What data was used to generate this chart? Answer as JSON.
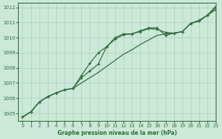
{
  "background_color": "#cce8d8",
  "plot_bg_color": "#cce8d8",
  "line_color": "#2d6b3c",
  "grid_color": "#aacfbc",
  "title": "Graphe pression niveau de la mer (hPa)",
  "ylim": [
    1004.5,
    1012.3
  ],
  "xlim": [
    -0.5,
    23
  ],
  "yticks": [
    1005,
    1006,
    1007,
    1008,
    1009,
    1010,
    1011,
    1012
  ],
  "xticks": [
    0,
    1,
    2,
    3,
    4,
    5,
    6,
    7,
    8,
    9,
    10,
    11,
    12,
    13,
    14,
    15,
    16,
    17,
    18,
    19,
    20,
    21,
    22,
    23
  ],
  "series1_x": [
    0,
    1,
    2,
    3,
    4,
    5,
    6,
    7,
    8,
    9,
    10,
    11,
    12,
    13,
    14,
    15,
    16,
    17,
    18,
    19,
    20,
    21,
    22,
    23
  ],
  "series1_y": [
    1004.75,
    1005.1,
    1005.75,
    1006.1,
    1006.35,
    1006.55,
    1006.65,
    1007.5,
    1008.3,
    1009.0,
    1009.4,
    1009.9,
    1010.2,
    1010.25,
    1010.4,
    1010.6,
    1010.55,
    1010.35,
    1010.3,
    1010.4,
    1010.95,
    1011.15,
    1011.5,
    1011.85
  ],
  "series2_x": [
    0,
    1,
    2,
    3,
    4,
    5,
    6,
    7,
    8,
    9,
    10,
    11,
    12,
    13,
    14,
    15,
    16,
    17,
    18,
    19,
    20,
    21,
    22,
    23
  ],
  "series2_y": [
    1004.75,
    1005.1,
    1005.75,
    1006.1,
    1006.35,
    1006.55,
    1006.65,
    1007.35,
    1007.8,
    1008.25,
    1009.4,
    1010.0,
    1010.25,
    1010.25,
    1010.45,
    1010.65,
    1010.65,
    1010.15,
    1010.3,
    1010.4,
    1010.95,
    1011.1,
    1011.5,
    1012.0
  ],
  "series3_x": [
    0,
    1,
    2,
    3,
    4,
    5,
    6,
    7,
    8,
    9,
    10,
    11,
    12,
    13,
    14,
    15,
    16,
    17,
    18,
    19,
    20,
    21,
    22,
    23
  ],
  "series3_y": [
    1004.75,
    1005.1,
    1005.75,
    1006.1,
    1006.35,
    1006.55,
    1006.65,
    1007.0,
    1007.35,
    1007.7,
    1008.1,
    1008.5,
    1008.9,
    1009.2,
    1009.55,
    1009.85,
    1010.15,
    1010.25,
    1010.3,
    1010.4,
    1010.95,
    1011.1,
    1011.5,
    1012.1
  ]
}
